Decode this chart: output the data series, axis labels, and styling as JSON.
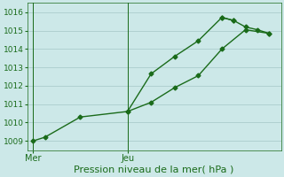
{
  "background_color": "#cce8e8",
  "grid_color": "#b0d0d0",
  "line_color": "#1a6b1a",
  "xlabel": "Pression niveau de la mer( hPa )",
  "ylim": [
    1008.5,
    1016.5
  ],
  "yticks": [
    1009,
    1010,
    1011,
    1012,
    1013,
    1014,
    1015,
    1016
  ],
  "xtick_labels": [
    "Mer",
    "Jeu"
  ],
  "xtick_positions": [
    0.0,
    8.0
  ],
  "series1_x": [
    0.0,
    1.0,
    4.0,
    8.0,
    10.0,
    12.0,
    14.0,
    16.0,
    17.0
  ],
  "series1_y": [
    1009.0,
    1009.2,
    1010.3,
    1010.6,
    1012.65,
    1013.6,
    1014.45,
    1015.72,
    1015.55
  ],
  "series2_x": [
    8.0,
    10.0,
    12.0,
    14.0,
    16.0,
    18.0,
    20.0
  ],
  "series2_y": [
    1010.6,
    1011.1,
    1011.9,
    1012.55,
    1014.0,
    1015.05,
    1014.85
  ],
  "series3_x": [
    16.0,
    17.0,
    18.0,
    19.0,
    20.0
  ],
  "series3_y": [
    1015.72,
    1015.55,
    1015.2,
    1015.05,
    1014.85
  ],
  "xlim": [
    -0.5,
    21.0
  ],
  "vline_x": 8.0,
  "marker": "D",
  "marker_size": 2.5,
  "line_width": 1.0,
  "ytick_fontsize": 6.5,
  "xtick_fontsize": 7,
  "xlabel_fontsize": 8
}
